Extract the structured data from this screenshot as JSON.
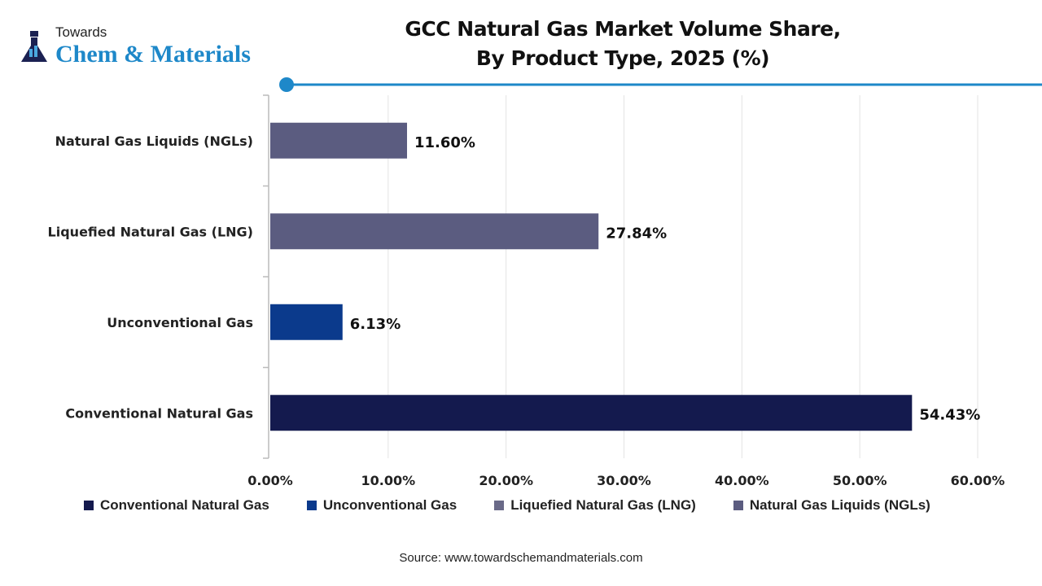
{
  "logo": {
    "line1": "Towards",
    "line2": "Chem & Materials"
  },
  "chart_data": {
    "type": "bar",
    "orientation": "horizontal",
    "title": "GCC Natural Gas Market Volume Share, By Product Type, 2025 (%)",
    "title_lines": [
      "GCC Natural Gas Market Volume Share,",
      "By Product Type, 2025 (%)"
    ],
    "categories": [
      "Natural Gas Liquids (NGLs)",
      "Liquefied Natural Gas (LNG)",
      "Unconventional Gas",
      "Conventional Natural Gas"
    ],
    "values": [
      11.6,
      27.84,
      6.13,
      54.43
    ],
    "data_labels": [
      "11.60%",
      "27.84%",
      "6.13%",
      "54.43%"
    ],
    "colors": [
      "#5b5c80",
      "#5b5c80",
      "#0b3a8c",
      "#141a4e"
    ],
    "xlim": [
      0,
      60
    ],
    "xticks": [
      "0.00%",
      "10.00%",
      "20.00%",
      "30.00%",
      "40.00%",
      "50.00%",
      "60.00%"
    ],
    "grid": true,
    "legend_position": "bottom",
    "legend": [
      {
        "label": "Conventional Natural Gas",
        "color": "#141a4e"
      },
      {
        "label": "Unconventional Gas",
        "color": "#0b3a8c"
      },
      {
        "label": "Liquefied Natural Gas (LNG)",
        "color": "#6a6a88"
      },
      {
        "label": "Natural Gas Liquids (NGLs)",
        "color": "#5b5c80"
      }
    ]
  },
  "source": "Source: www.towardschemandmaterials.com",
  "accent": "#1e88c9"
}
